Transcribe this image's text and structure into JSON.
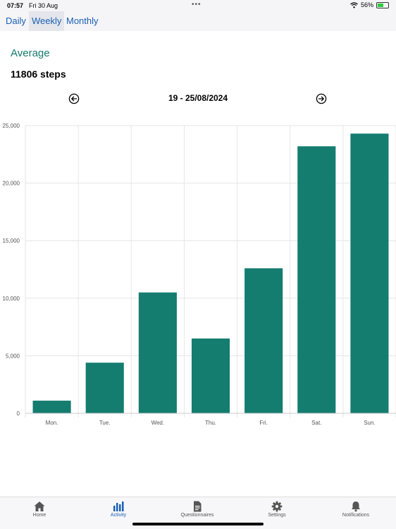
{
  "status": {
    "time": "07:57",
    "date": "Fri 30 Aug",
    "battery": "56%",
    "battery_level": 0.56
  },
  "tabs": [
    "Daily",
    "Weekly",
    "Monthly"
  ],
  "selected_tab": "Weekly",
  "average": {
    "title": "Average",
    "value": "11806 steps"
  },
  "week_range": "19 - 25/08/2024",
  "colors": {
    "accent": "#157a6e",
    "bar": "#147d6f",
    "link": "#1a5fb4"
  },
  "icons": {
    "prev": "arrow-left-circle-icon",
    "next": "arrow-right-circle-icon"
  },
  "chart_data": {
    "type": "bar",
    "categories": [
      "Mon.",
      "Tue.",
      "Wed.",
      "Thu.",
      "Fri.",
      "Sat.",
      "Sun."
    ],
    "values": [
      1100,
      4400,
      10500,
      6500,
      12600,
      23200,
      24300
    ],
    "ylim": [
      0,
      25000
    ],
    "yticks": [
      "0",
      "5,000",
      "10,000",
      "15,000",
      "20,000",
      "25,000"
    ],
    "title": "",
    "xlabel": "",
    "ylabel": "",
    "grid": true
  },
  "bottom_tabs": [
    {
      "label": "Home",
      "icon": "home-icon"
    },
    {
      "label": "Activity",
      "icon": "bar-chart-icon"
    },
    {
      "label": "Questionnaires",
      "icon": "document-icon"
    },
    {
      "label": "Settings",
      "icon": "gear-icon"
    },
    {
      "label": "Notifications",
      "icon": "bell-icon"
    }
  ],
  "active_bottom_tab": "Activity"
}
